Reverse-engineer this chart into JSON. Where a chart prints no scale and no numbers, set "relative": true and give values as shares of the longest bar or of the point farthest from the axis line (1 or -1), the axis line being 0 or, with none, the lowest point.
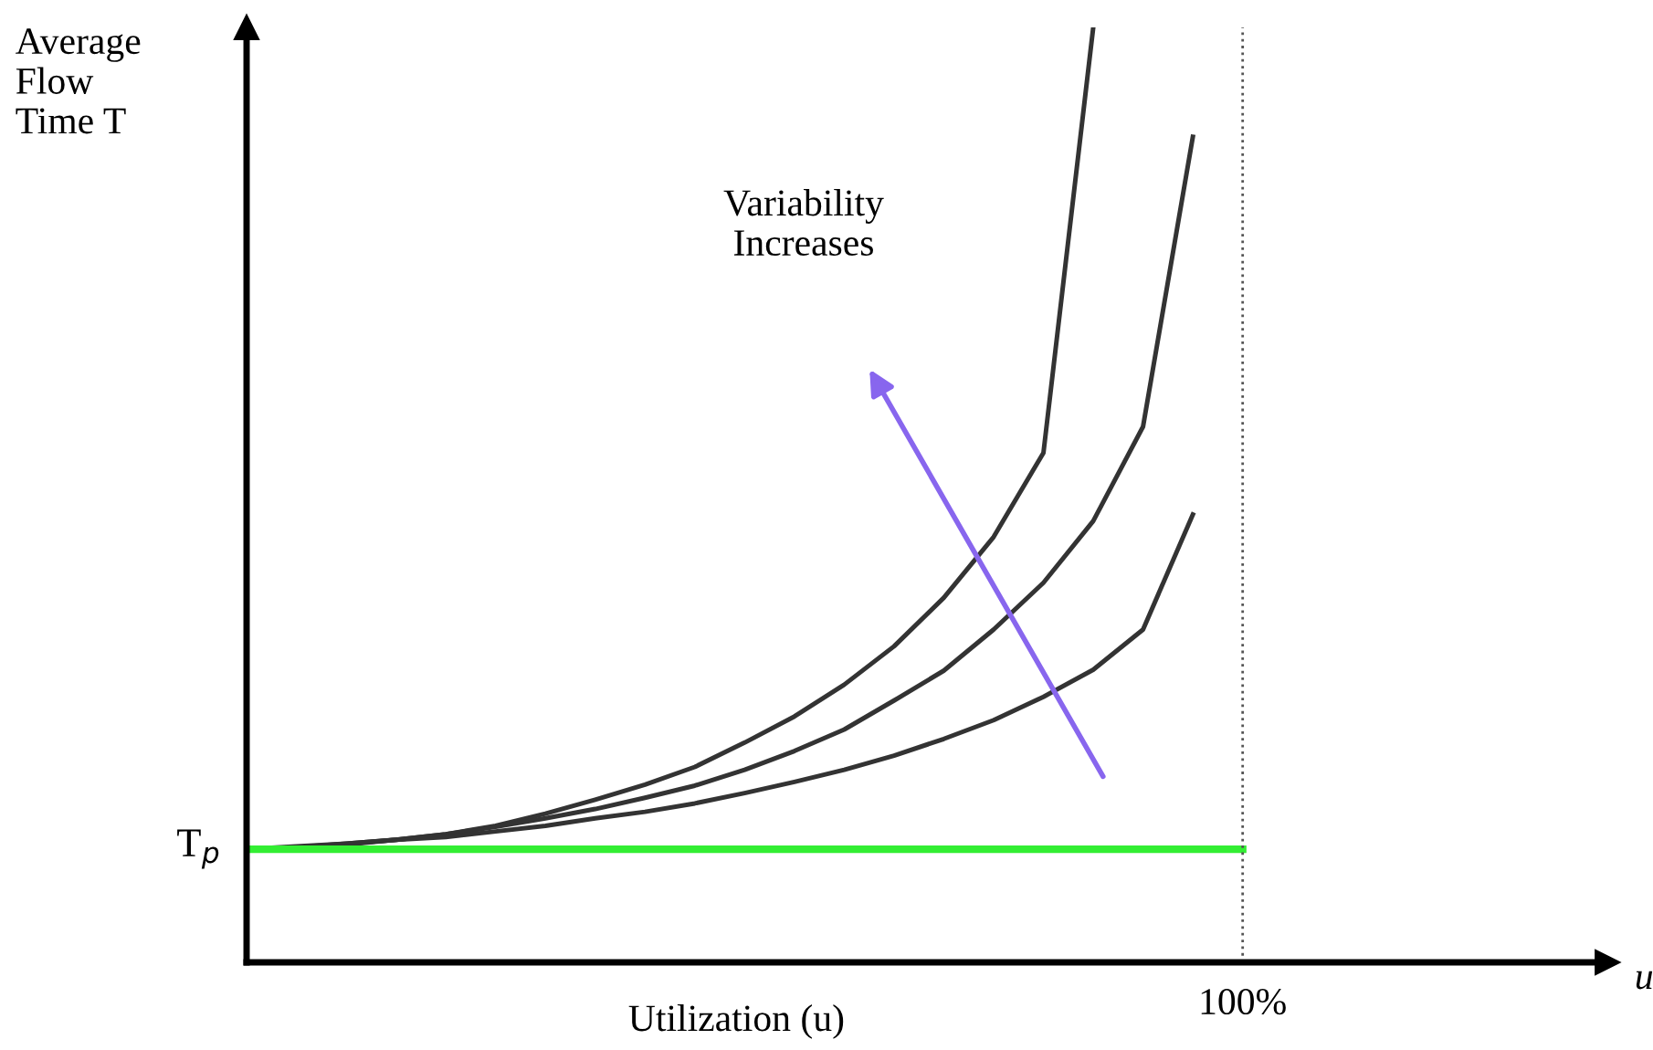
{
  "chart_data": {
    "type": "line",
    "relative": true,
    "xlabel": "Utilization (u)",
    "ylabel": "Average\nFlow\nTime T",
    "marker": "none",
    "line_style": "solid",
    "categories": [
      null,
      null,
      null,
      null,
      null,
      null,
      null,
      null,
      null,
      null,
      null,
      null,
      null,
      null,
      null,
      null,
      null,
      null,
      null,
      null,
      null
    ],
    "series": [
      {
        "color": "#333333",
        "values": [
          0.121,
          0.122,
          0.126,
          0.131,
          0.137,
          0.146,
          0.159,
          0.174,
          0.19,
          0.209,
          0.235,
          0.263,
          0.297,
          0.338,
          0.39,
          0.455,
          0.545,
          1.0,
          null,
          null,
          null
        ]
      },
      {
        "color": "#333333",
        "values": [
          0.121,
          0.123,
          0.127,
          0.131,
          0.137,
          0.145,
          0.154,
          0.164,
          0.176,
          0.189,
          0.206,
          0.226,
          0.249,
          0.28,
          0.312,
          0.356,
          0.406,
          0.472,
          0.573,
          0.883,
          null
        ]
      },
      {
        "color": "#333333",
        "values": [
          0.121,
          0.124,
          0.127,
          0.131,
          0.134,
          0.14,
          0.146,
          0.154,
          0.161,
          0.17,
          0.181,
          0.193,
          0.206,
          0.221,
          0.239,
          0.259,
          0.284,
          0.313,
          0.356,
          0.479,
          null
        ]
      },
      {
        "color": "#33ee33",
        "values": [
          0.121,
          0.121,
          0.121,
          0.121,
          0.121,
          0.121,
          0.121,
          0.121,
          0.121,
          0.121,
          0.121,
          0.121,
          0.121,
          0.121,
          0.121,
          0.121,
          0.121,
          0.121,
          0.121,
          0.121,
          0.121
        ]
      }
    ],
    "annotations": [
      "T$_{p}$",
      "Variability\nIncreases",
      "100%",
      "u"
    ]
  }
}
